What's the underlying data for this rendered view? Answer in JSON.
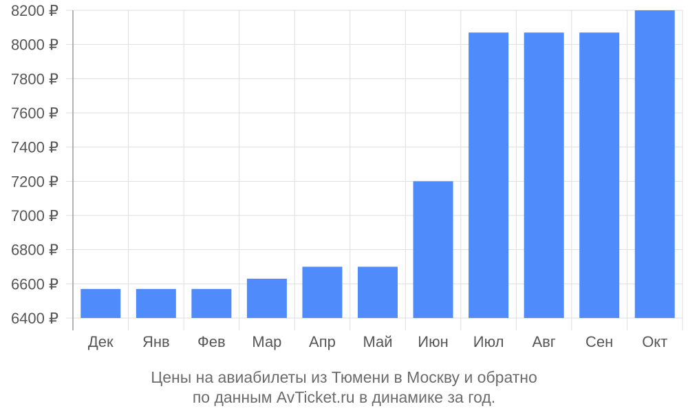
{
  "chart_data": {
    "type": "bar",
    "categories": [
      "Дек",
      "Янв",
      "Фев",
      "Мар",
      "Апр",
      "Май",
      "Июн",
      "Июл",
      "Авг",
      "Сен",
      "Окт"
    ],
    "values": [
      6570,
      6570,
      6570,
      6630,
      6700,
      6700,
      7200,
      8070,
      8070,
      8070,
      8200
    ],
    "y_ticks": [
      6400,
      6600,
      6800,
      7000,
      7200,
      7400,
      7600,
      7800,
      8000,
      8200
    ],
    "y_tick_suffix": " ₽",
    "ylim": [
      6400,
      8200
    ],
    "grid": true,
    "bar_color": "#4f8bfb",
    "caption": [
      "Цены на авиабилеты из Тюмени в Москву и обратно",
      "по данным AvTicket.ru в динамике за год."
    ]
  }
}
